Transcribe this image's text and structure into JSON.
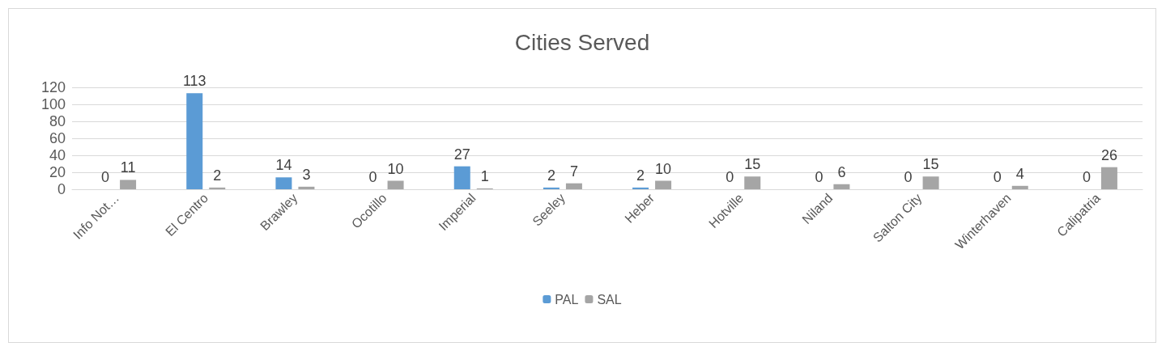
{
  "chart_data": {
    "type": "bar",
    "title": "Cities Served",
    "categories": [
      "Info Not…",
      "El Centro",
      "Brawley",
      "Ocotillo",
      "Imperial",
      "Seeley",
      "Heber",
      "Hotville",
      "Niland",
      "Salton City",
      "Winterhaven",
      "Calipatria"
    ],
    "series": [
      {
        "name": "PAL",
        "color": "#5b9bd5",
        "values": [
          0,
          113,
          14,
          0,
          27,
          2,
          2,
          0,
          0,
          0,
          0,
          0
        ]
      },
      {
        "name": "SAL",
        "color": "#a5a5a5",
        "values": [
          11,
          2,
          3,
          10,
          1,
          7,
          10,
          15,
          6,
          15,
          4,
          26
        ]
      }
    ],
    "ylim": [
      0,
      120
    ],
    "yticks": [
      0,
      20,
      40,
      60,
      80,
      100,
      120
    ],
    "grid": "y",
    "legend": "bottom",
    "data_labels": true
  }
}
